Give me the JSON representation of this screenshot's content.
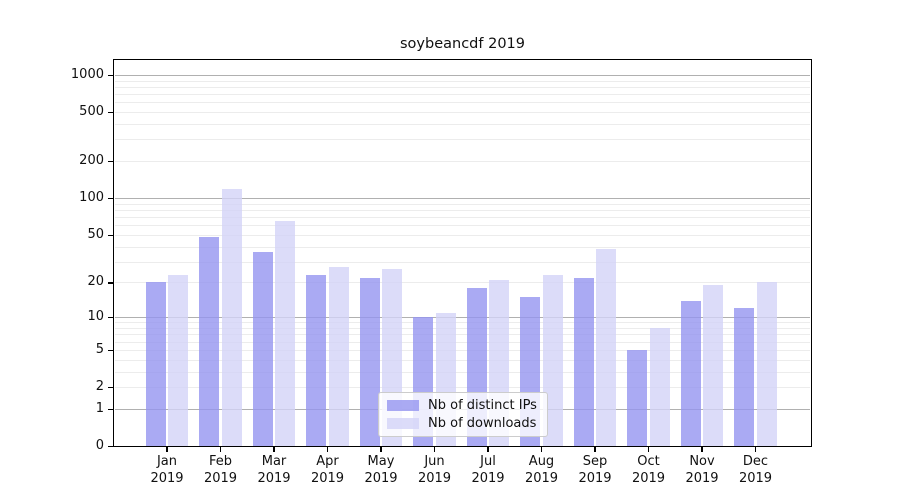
{
  "title": "soybeancdf 2019",
  "chart_data": {
    "type": "bar",
    "title": "soybeancdf 2019",
    "categories": [
      "Jan 2019",
      "Feb 2019",
      "Mar 2019",
      "Apr 2019",
      "May 2019",
      "Jun 2019",
      "Jul 2019",
      "Aug 2019",
      "Sep 2019",
      "Oct 2019",
      "Nov 2019",
      "Dec 2019"
    ],
    "series": [
      {
        "name": "Nb of distinct IPs",
        "color": "#9595f0",
        "values": [
          20,
          48,
          36,
          23,
          22,
          10,
          18,
          15,
          22,
          5,
          14,
          12
        ]
      },
      {
        "name": "Nb of downloads",
        "color": "#d3d3f8",
        "values": [
          23,
          118,
          65,
          27,
          26,
          11,
          21,
          23,
          38,
          8,
          19,
          20
        ]
      }
    ],
    "bar_alpha": 0.8,
    "xlabel": "",
    "ylabel": "",
    "yscale": "log10(value+1)",
    "ytick_labels": [
      "0",
      "1",
      "2",
      "5",
      "10",
      "20",
      "50",
      "100",
      "200",
      "500",
      "1000"
    ],
    "minor_grid_values": [
      2,
      3,
      4,
      5,
      6,
      7,
      8,
      9,
      20,
      30,
      40,
      50,
      60,
      70,
      80,
      90,
      200,
      300,
      400,
      500,
      600,
      700,
      800,
      900
    ],
    "major_grid_values": [
      1,
      10,
      100,
      1000
    ],
    "ylim": [
      0,
      1320
    ],
    "grid": "horizontal",
    "legend_position": "lower center"
  },
  "legend": {
    "items": [
      "Nb of distinct IPs",
      "Nb of downloads"
    ]
  },
  "colors": {
    "distinct_ips_bar": "#9595f0",
    "downloads_bar": "#d3d3f8",
    "major_gridline": "#b0b0b0",
    "minor_gridline": "#ececec",
    "axis": "#000000",
    "text": "#111111",
    "background": "#ffffff",
    "legend_background": "rgba(255,255,255,0.8)",
    "legend_border": "#cccccc"
  }
}
